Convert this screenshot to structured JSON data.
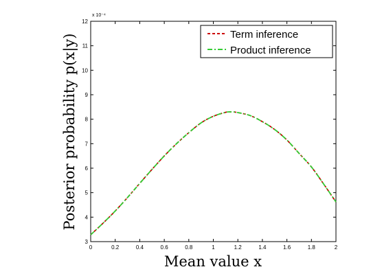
{
  "chart_data": {
    "type": "line",
    "xlabel": "Mean value x",
    "ylabel": "Posterior probability p(x|y)",
    "y_exponent_label": "x 10⁻⁴",
    "xlim": [
      0,
      2
    ],
    "ylim": [
      3,
      12
    ],
    "xticks": [
      "0",
      "0.2",
      "0.4",
      "0.6",
      "0.8",
      "1",
      "1.2",
      "1.4",
      "1.6",
      "1.8",
      "2"
    ],
    "yticks": [
      "3",
      "4",
      "5",
      "6",
      "7",
      "8",
      "9",
      "10",
      "11",
      "12"
    ],
    "grid": false,
    "legend_position": "top-right",
    "x": [
      0,
      0.1,
      0.2,
      0.3,
      0.4,
      0.5,
      0.6,
      0.7,
      0.8,
      0.9,
      1.0,
      1.1,
      1.15,
      1.2,
      1.3,
      1.4,
      1.5,
      1.6,
      1.7,
      1.8,
      1.9,
      2.0
    ],
    "series": [
      {
        "name": "Term inference",
        "color": "#cc0000",
        "style": "dashed",
        "values": [
          3.28,
          3.75,
          4.25,
          4.8,
          5.38,
          5.95,
          6.5,
          7.0,
          7.45,
          7.85,
          8.12,
          8.28,
          8.3,
          8.27,
          8.15,
          7.9,
          7.58,
          7.15,
          6.6,
          6.05,
          5.35,
          4.62
        ]
      },
      {
        "name": "Product inference",
        "color": "#33cc33",
        "style": "dashdot",
        "values": [
          3.28,
          3.75,
          4.25,
          4.8,
          5.38,
          5.95,
          6.5,
          7.0,
          7.45,
          7.85,
          8.12,
          8.28,
          8.3,
          8.27,
          8.15,
          7.9,
          7.58,
          7.15,
          6.6,
          6.05,
          5.35,
          4.62
        ]
      }
    ]
  }
}
